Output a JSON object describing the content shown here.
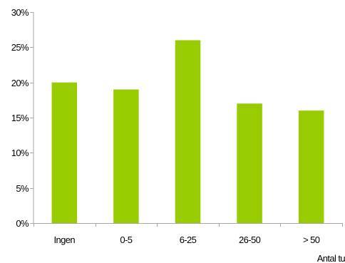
{
  "chart_data": {
    "type": "bar",
    "categories": [
      "Ingen",
      "0-5",
      "6-25",
      "26-50",
      "> 50"
    ],
    "values": [
      20,
      19,
      26,
      17,
      16
    ],
    "y_ticks": [
      "0%",
      "5%",
      "10%",
      "15%",
      "20%",
      "25%",
      "30%"
    ],
    "ylim": [
      0,
      30
    ],
    "xlabel": "Antal tu",
    "ylabel": "",
    "title": "",
    "grid": false,
    "colors": {
      "bar": "#99cc00",
      "axis": "#a6a6a6"
    }
  }
}
